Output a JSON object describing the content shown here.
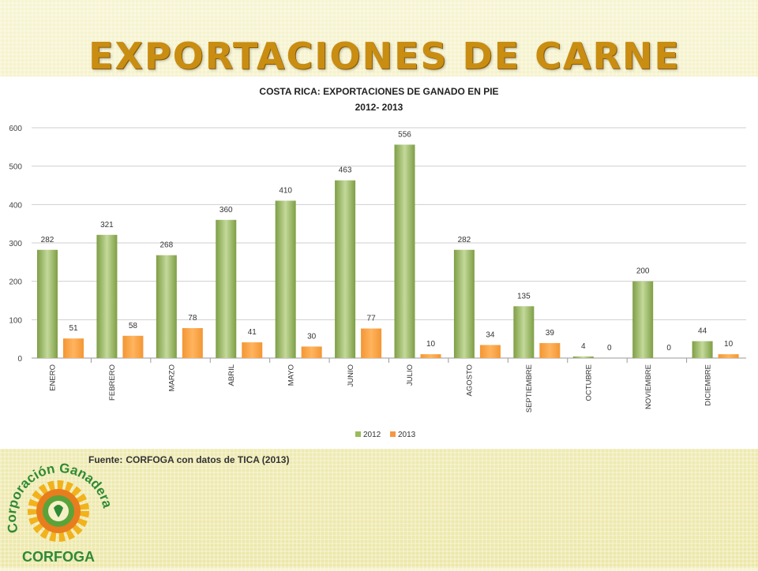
{
  "slide": {
    "title": "EXPORTACIONES DE CARNE",
    "source_label": "Fuente:",
    "source_text": "CORFOGA con datos de TICA (2013)"
  },
  "logo": {
    "arc_text": "Corporación Ganadera",
    "bottom_text": "CORFOGA"
  },
  "chart_data": {
    "type": "bar",
    "title": "COSTA RICA: EXPORTACIONES DE GANADO EN PIE",
    "subtitle": "2012- 2013",
    "categories": [
      "ENERO",
      "FEBRERO",
      "MARZO",
      "ABRIL",
      "MAYO",
      "JUNIO",
      "JULIO",
      "AGOSTO",
      "SEPTIEMBRE",
      "OCTUBRE",
      "NOVIEMBRE",
      "DICIEMBRE"
    ],
    "series": [
      {
        "name": "2012",
        "color": "#9bbb59",
        "values": [
          282,
          321,
          268,
          360,
          410,
          463,
          556,
          282,
          135,
          4,
          200,
          44
        ]
      },
      {
        "name": "2013",
        "color": "#f79646",
        "values": [
          51,
          58,
          78,
          41,
          30,
          77,
          10,
          34,
          39,
          0,
          0,
          10
        ]
      }
    ],
    "ylim": [
      0,
      600
    ],
    "yticks": [
      0,
      100,
      200,
      300,
      400,
      500,
      600
    ],
    "grid": true,
    "legend_position": "bottom"
  }
}
